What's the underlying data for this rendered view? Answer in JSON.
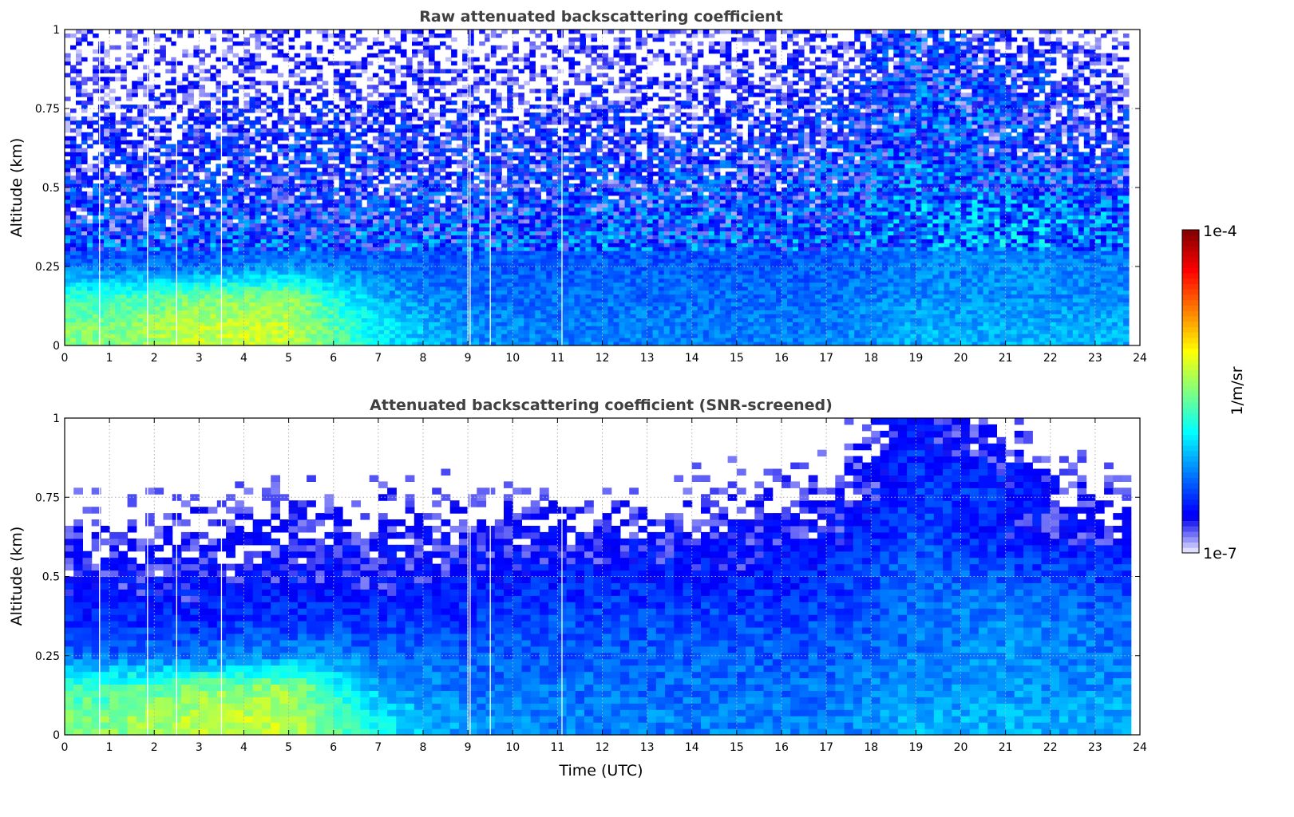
{
  "chart_data": [
    {
      "type": "heatmap",
      "title": "Raw attenuated backscattering coefficient",
      "xlabel": "",
      "ylabel": "Altitude (km)",
      "xlim": [
        0,
        24
      ],
      "ylim": [
        0,
        1
      ],
      "xticks": [
        "0",
        "1",
        "2",
        "3",
        "4",
        "5",
        "6",
        "7",
        "8",
        "9",
        "10",
        "11",
        "12",
        "13",
        "14",
        "15",
        "16",
        "17",
        "18",
        "19",
        "20",
        "21",
        "22",
        "23",
        "24"
      ],
      "yticks": [
        "0",
        "0.25",
        "0.5",
        "0.75",
        "1"
      ],
      "grid": true,
      "screened": false
    },
    {
      "type": "heatmap",
      "title": "Attenuated backscattering coefficient (SNR-screened)",
      "xlabel": "Time (UTC)",
      "ylabel": "Altitude (km)",
      "xlim": [
        0,
        24
      ],
      "ylim": [
        0,
        1
      ],
      "xticks": [
        "0",
        "1",
        "2",
        "3",
        "4",
        "5",
        "6",
        "7",
        "8",
        "9",
        "10",
        "11",
        "12",
        "13",
        "14",
        "15",
        "16",
        "17",
        "18",
        "19",
        "20",
        "21",
        "22",
        "23",
        "24"
      ],
      "yticks": [
        "0",
        "0.25",
        "0.5",
        "0.75",
        "1"
      ],
      "grid": true,
      "screened": true
    }
  ],
  "data_model": {
    "data_end_utc": 23.65,
    "time_bin_centers_utc": [
      1,
      3,
      5,
      7,
      9,
      11,
      13,
      15,
      17,
      19,
      21,
      23
    ],
    "altitude_bin_centers_km": [
      0.05,
      0.15,
      0.25,
      0.35,
      0.45,
      0.55,
      0.65,
      0.75,
      0.85,
      0.95
    ],
    "log10_backscatter": [
      [
        -5.5,
        -5.7,
        -6.3,
        -6.5,
        -6.6,
        -6.7,
        -6.8,
        -6.9,
        -7.0,
        -7.0
      ],
      [
        -5.3,
        -5.5,
        -6.3,
        -6.5,
        -6.6,
        -6.7,
        -6.75,
        -6.85,
        -7.0,
        -7.0
      ],
      [
        -5.3,
        -5.45,
        -6.2,
        -6.45,
        -6.55,
        -6.65,
        -6.7,
        -6.85,
        -6.95,
        -7.0
      ],
      [
        -5.9,
        -6.1,
        -6.3,
        -6.45,
        -6.6,
        -6.65,
        -6.7,
        -6.8,
        -6.9,
        -7.0
      ],
      [
        -6.2,
        -6.3,
        -6.35,
        -6.45,
        -6.55,
        -6.65,
        -6.75,
        -6.85,
        -6.95,
        -7.0
      ],
      [
        -6.25,
        -6.3,
        -6.35,
        -6.4,
        -6.5,
        -6.6,
        -6.7,
        -6.85,
        -6.95,
        -7.0
      ],
      [
        -6.25,
        -6.3,
        -6.35,
        -6.4,
        -6.5,
        -6.6,
        -6.7,
        -6.85,
        -6.95,
        -7.0
      ],
      [
        -6.25,
        -6.3,
        -6.35,
        -6.4,
        -6.5,
        -6.6,
        -6.7,
        -6.8,
        -6.9,
        -7.0
      ],
      [
        -6.25,
        -6.3,
        -6.35,
        -6.4,
        -6.5,
        -6.55,
        -6.65,
        -6.75,
        -6.85,
        -6.95
      ],
      [
        -6.1,
        -6.2,
        -6.25,
        -6.3,
        -6.3,
        -6.35,
        -6.4,
        -6.45,
        -6.5,
        -6.55
      ],
      [
        -6.1,
        -6.2,
        -6.2,
        -6.2,
        -6.3,
        -6.45,
        -6.6,
        -6.5,
        -6.6,
        -6.8
      ],
      [
        -6.1,
        -6.2,
        -6.25,
        -6.3,
        -6.4,
        -6.5,
        -6.7,
        -6.8,
        -6.9,
        -7.0
      ]
    ],
    "missing_profiles_utc": [
      0.78,
      1.85,
      2.5,
      3.5,
      9.0,
      9.05,
      9.5,
      11.1
    ],
    "snr_threshold_log10": -6.78
  },
  "colorbar": {
    "label": "1/m/sr",
    "max_label": "1e-4",
    "min_label": "1e-7",
    "log10_range": [
      -7,
      -4
    ],
    "colormap": "jet"
  }
}
